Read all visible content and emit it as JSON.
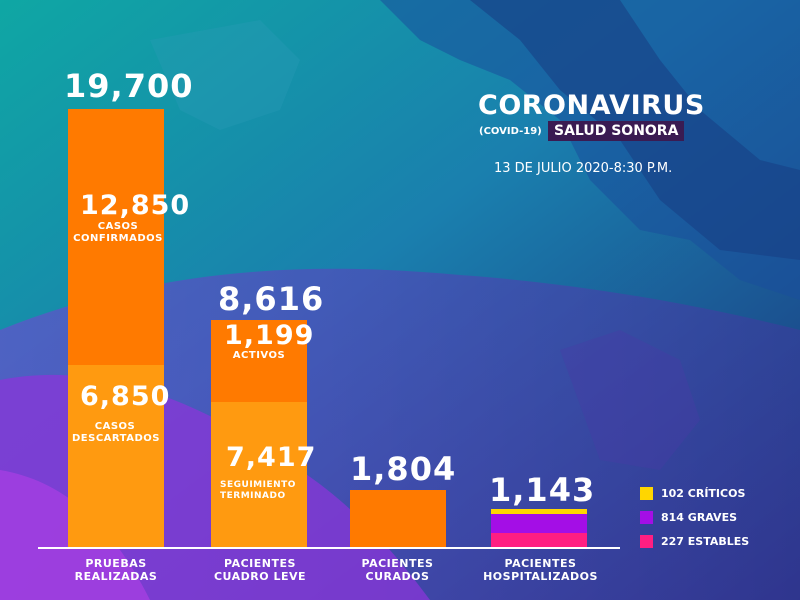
{
  "header": {
    "title": "CORONAVIRUS",
    "subtitle": "(COVID-19)",
    "badge": "SALUD SONORA",
    "date": "13 DE JULIO 2020-8:30 P.M."
  },
  "colors": {
    "orange": "#ff7a00",
    "light_orange": "#ff9a10",
    "yellow": "#ffd600",
    "purple": "#a40ee6",
    "pink": "#ff1e82"
  },
  "chart_data": {
    "type": "bar",
    "categories": [
      "PRUEBAS REALIZADAS",
      "PACIENTES CUADRO LEVE",
      "PACIENTES CURADOS",
      "PACIENTES HOSPITALIZADOS"
    ],
    "totals": [
      "19,700",
      "8,616",
      "1,804",
      "1,143"
    ],
    "segments": {
      "pruebas": [
        {
          "value": "12,850",
          "label": "CASOS CONFIRMADOS"
        },
        {
          "value": "6,850",
          "label": "CASOS DESCARTADOS"
        }
      ],
      "leve": [
        {
          "value": "1,199",
          "label": "ACTIVOS"
        },
        {
          "value": "7,417",
          "label": "SEGUIMIENTO TERMINADO"
        }
      ]
    },
    "hospitalizados_legend": [
      {
        "label": "102 CRÍTICOS",
        "value": 102,
        "color": "#ffd600"
      },
      {
        "label": "814 GRAVES",
        "value": 814,
        "color": "#a40ee6"
      },
      {
        "label": "227 ESTABLES",
        "value": 227,
        "color": "#ff1e82"
      }
    ]
  }
}
